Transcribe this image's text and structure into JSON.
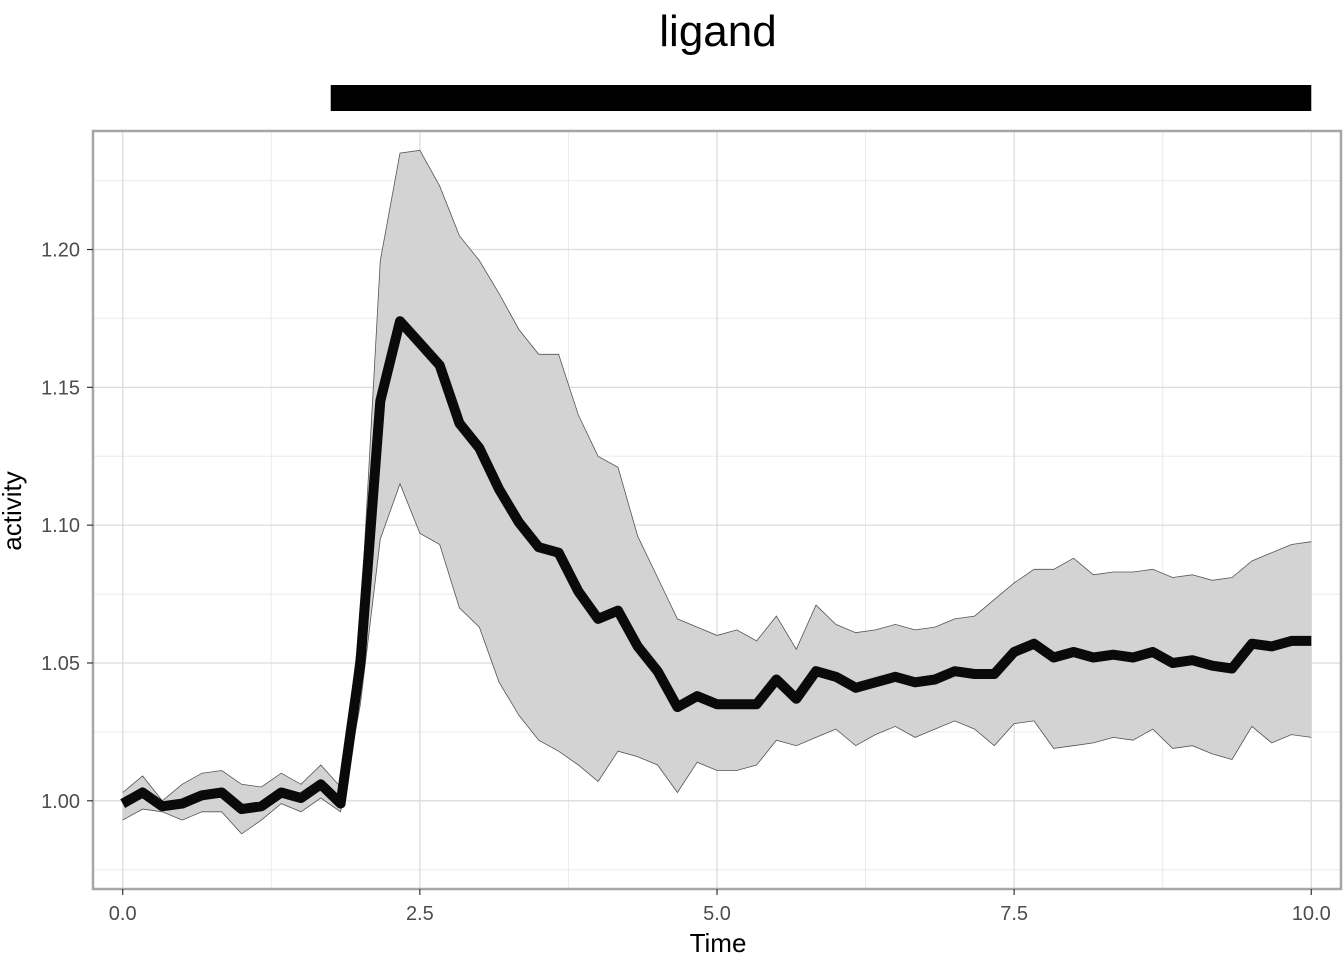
{
  "chart_data": {
    "type": "line",
    "title": "ligand",
    "xlabel": "Time",
    "ylabel": "activity",
    "xlim": [
      -0.25,
      10.25
    ],
    "ylim": [
      0.968,
      1.243
    ],
    "x_ticks": [
      "0.0",
      "2.5",
      "5.0",
      "7.5",
      "10.0"
    ],
    "y_ticks": [
      "1.00",
      "1.05",
      "1.10",
      "1.15",
      "1.20"
    ],
    "x_tick_values": [
      0.0,
      2.5,
      5.0,
      7.5,
      10.0
    ],
    "y_tick_values": [
      1.0,
      1.05,
      1.1,
      1.15,
      1.2
    ],
    "grid": true,
    "stimulus_bar": {
      "label": "ligand",
      "start": 1.75,
      "end": 10.0
    },
    "colors": {
      "line": "#0a0a0a",
      "ribbon_fill": "#d3d3d3",
      "ribbon_edge": "#555555",
      "grid": "#dcdcdc",
      "panel_border": "#a6a6a6",
      "bar": "#000000"
    },
    "series": [
      {
        "x": [
          0.0,
          0.167,
          0.333,
          0.5,
          0.667,
          0.833,
          1.0,
          1.167,
          1.333,
          1.5,
          1.667,
          1.833,
          2.0,
          2.167,
          2.333,
          2.5,
          2.667,
          2.833,
          3.0,
          3.167,
          3.333,
          3.5,
          3.667,
          3.833,
          4.0,
          4.167,
          4.333,
          4.5,
          4.667,
          4.833,
          5.0,
          5.167,
          5.333,
          5.5,
          5.667,
          5.833,
          6.0,
          6.167,
          6.333,
          6.5,
          6.667,
          6.833,
          7.0,
          7.167,
          7.333,
          7.5,
          7.667,
          7.833,
          8.0,
          8.167,
          8.333,
          8.5,
          8.667,
          8.833,
          9.0,
          9.167,
          9.333,
          9.5,
          9.667,
          9.833,
          10.0
        ],
        "y": [
          0.999,
          1.003,
          0.998,
          0.999,
          1.002,
          1.003,
          0.997,
          0.998,
          1.003,
          1.001,
          1.006,
          0.999,
          1.05,
          1.145,
          1.174,
          1.166,
          1.158,
          1.137,
          1.128,
          1.113,
          1.101,
          1.092,
          1.09,
          1.076,
          1.066,
          1.069,
          1.056,
          1.047,
          1.034,
          1.038,
          1.035,
          1.035,
          1.035,
          1.044,
          1.037,
          1.047,
          1.045,
          1.041,
          1.043,
          1.045,
          1.043,
          1.044,
          1.047,
          1.046,
          1.046,
          1.054,
          1.057,
          1.052,
          1.054,
          1.052,
          1.053,
          1.052,
          1.054,
          1.05,
          1.051,
          1.049,
          1.048,
          1.057,
          1.056,
          1.058,
          1.058
        ],
        "upper": [
          1.003,
          1.009,
          1.0,
          1.006,
          1.01,
          1.011,
          1.006,
          1.005,
          1.01,
          1.006,
          1.013,
          1.005,
          1.065,
          1.196,
          1.235,
          1.236,
          1.223,
          1.205,
          1.196,
          1.184,
          1.171,
          1.162,
          1.162,
          1.14,
          1.125,
          1.121,
          1.096,
          1.081,
          1.066,
          1.063,
          1.06,
          1.062,
          1.058,
          1.067,
          1.055,
          1.071,
          1.064,
          1.061,
          1.062,
          1.064,
          1.062,
          1.063,
          1.066,
          1.067,
          1.073,
          1.079,
          1.084,
          1.084,
          1.088,
          1.082,
          1.083,
          1.083,
          1.084,
          1.081,
          1.082,
          1.08,
          1.081,
          1.087,
          1.09,
          1.093,
          1.094
        ],
        "lower": [
          0.993,
          0.997,
          0.996,
          0.993,
          0.996,
          0.996,
          0.988,
          0.993,
          0.999,
          0.996,
          1.001,
          0.996,
          1.035,
          1.095,
          1.115,
          1.097,
          1.093,
          1.07,
          1.063,
          1.043,
          1.031,
          1.022,
          1.018,
          1.013,
          1.007,
          1.018,
          1.016,
          1.013,
          1.003,
          1.014,
          1.011,
          1.011,
          1.013,
          1.022,
          1.02,
          1.023,
          1.026,
          1.02,
          1.024,
          1.027,
          1.023,
          1.026,
          1.029,
          1.026,
          1.02,
          1.028,
          1.029,
          1.019,
          1.02,
          1.021,
          1.023,
          1.022,
          1.026,
          1.019,
          1.02,
          1.017,
          1.015,
          1.027,
          1.021,
          1.024,
          1.023
        ]
      }
    ]
  }
}
